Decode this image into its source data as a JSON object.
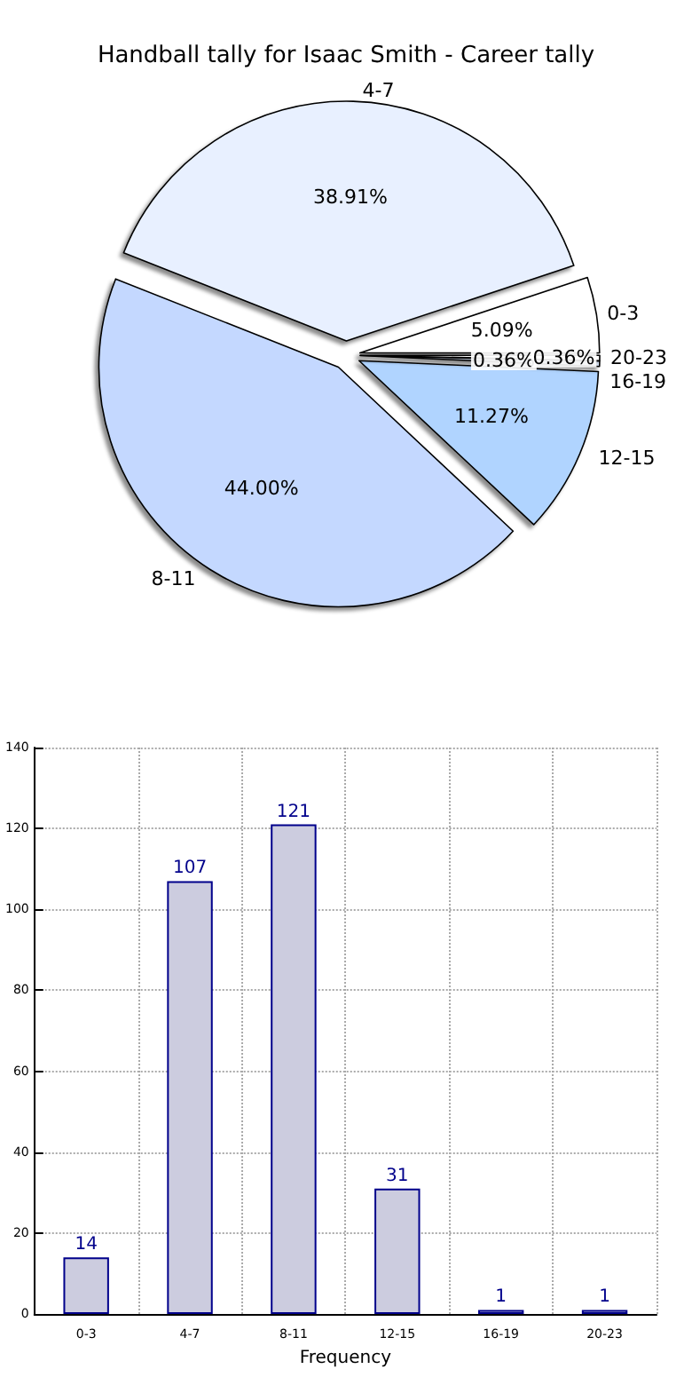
{
  "chart_data": [
    {
      "type": "pie",
      "title": "Handball tally for Isaac Smith - Career tally",
      "categories": [
        "0-3",
        "4-7",
        "8-11",
        "12-15",
        "16-19",
        "20-23"
      ],
      "values": [
        5.09,
        38.91,
        44.0,
        11.27,
        0.36,
        0.36
      ],
      "value_labels": [
        "5.09%",
        "38.91%",
        "44.00%",
        "11.27%",
        "0.36%",
        "0.36%"
      ],
      "colors": [
        "#ffffff",
        "#e8f0ff",
        "#c4d8ff",
        "#b0d4ff",
        "#e0ecff",
        "#ffffff"
      ],
      "legend": false
    },
    {
      "type": "bar",
      "xlabel": "Frequency",
      "categories": [
        "0-3",
        "4-7",
        "8-11",
        "12-15",
        "16-19",
        "20-23"
      ],
      "values": [
        14,
        107,
        121,
        31,
        1,
        1
      ],
      "color": "#ccccdf",
      "data_labels": true,
      "ylim": [
        0,
        140
      ],
      "yticks": [
        0,
        20,
        40,
        60,
        80,
        100,
        120,
        140
      ],
      "grid": true,
      "legend": false
    }
  ]
}
